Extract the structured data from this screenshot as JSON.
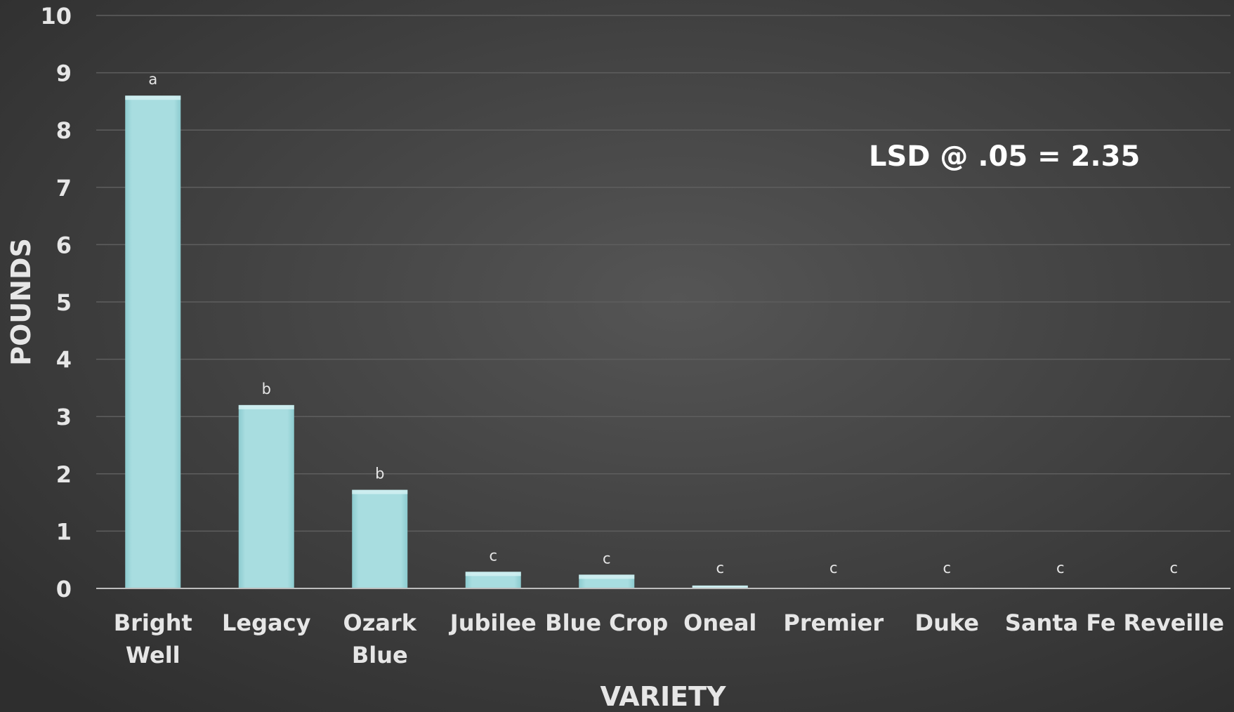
{
  "chart_data": {
    "type": "bar",
    "categories": [
      "Bright Well",
      "Legacy",
      "Ozark Blue",
      "Jubilee",
      "Blue Crop",
      "Oneal",
      "Premier",
      "Duke",
      "Santa Fe",
      "Reveille"
    ],
    "category_lines": [
      [
        "Bright",
        "Well"
      ],
      [
        "Legacy"
      ],
      [
        "Ozark",
        "Blue"
      ],
      [
        "Jubilee"
      ],
      [
        "Blue Crop"
      ],
      [
        "Oneal"
      ],
      [
        "Premier"
      ],
      [
        "Duke"
      ],
      [
        "Santa Fe"
      ],
      [
        "Reveille"
      ]
    ],
    "values": [
      8.6,
      3.2,
      1.72,
      0.29,
      0.24,
      0.05,
      0.01,
      0.01,
      0.0,
      0.0
    ],
    "significance_labels": [
      "a",
      "b",
      "b",
      "c",
      "c",
      "c",
      "c",
      "c",
      "c",
      "c"
    ],
    "title": "",
    "xlabel": "VARIETY",
    "ylabel": "POUNDS",
    "ylim": [
      0,
      10
    ],
    "yticks": [
      "0",
      "1",
      "2",
      "3",
      "4",
      "5",
      "6",
      "7",
      "8",
      "9",
      "10"
    ],
    "grid": true,
    "legend": "none",
    "annotation": "LSD @ .05 = 2.35",
    "colors": {
      "bar": "#a8dde0",
      "bar_edge": "#8ccbcf",
      "background_center": "#555555",
      "background_edge": "#2e2e2e",
      "gridline": "#5e5e5e",
      "axis_line": "#bdbdbd",
      "text": "#e6e6e6",
      "annotation_text": "#ffffff"
    }
  }
}
